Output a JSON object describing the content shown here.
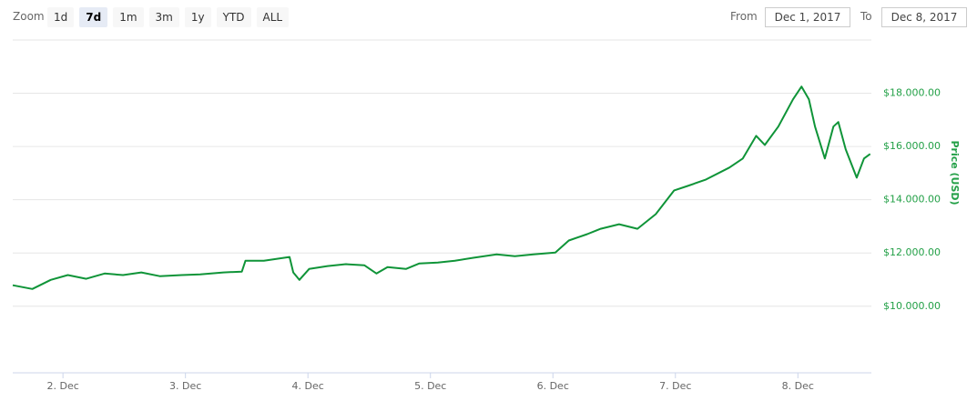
{
  "toolbar": {
    "zoom_label": "Zoom",
    "zoom_buttons": [
      {
        "label": "1d",
        "selected": false
      },
      {
        "label": "7d",
        "selected": true
      },
      {
        "label": "1m",
        "selected": false
      },
      {
        "label": "3m",
        "selected": false
      },
      {
        "label": "1y",
        "selected": false
      },
      {
        "label": "YTD",
        "selected": false
      },
      {
        "label": "ALL",
        "selected": false
      }
    ],
    "from_label": "From",
    "from_value": "Dec 1, 2017",
    "to_label": "To",
    "to_value": "Dec 8, 2017"
  },
  "chart_data": {
    "type": "line",
    "y_axis_title": "Price (USD)",
    "color": "#0f9438",
    "axis_color": "#23a047",
    "grid": true,
    "x": [
      1.59,
      1.75,
      1.9,
      2.04,
      2.19,
      2.34,
      2.49,
      2.64,
      2.79,
      2.97,
      3.12,
      3.31,
      3.46,
      3.49,
      3.64,
      3.85,
      3.88,
      3.93,
      4.01,
      4.16,
      4.31,
      4.46,
      4.56,
      4.65,
      4.8,
      4.91,
      5.06,
      5.2,
      5.35,
      5.54,
      5.69,
      5.84,
      6.02,
      6.13,
      6.28,
      6.39,
      6.54,
      6.69,
      6.84,
      6.99,
      7.1,
      7.25,
      7.44,
      7.55,
      7.66,
      7.73,
      7.84,
      7.96,
      8.03,
      8.09,
      8.14,
      8.22,
      8.29,
      8.33,
      8.39,
      8.48,
      8.54,
      8.59
    ],
    "values": [
      10790,
      10650,
      10990,
      11170,
      11030,
      11230,
      11170,
      11270,
      11130,
      11170,
      11200,
      11270,
      11300,
      11710,
      11710,
      11850,
      11270,
      10990,
      11400,
      11510,
      11580,
      11540,
      11230,
      11470,
      11400,
      11610,
      11640,
      11710,
      11820,
      11950,
      11880,
      11950,
      12020,
      12470,
      12710,
      12910,
      13080,
      12910,
      13460,
      14350,
      14520,
      14760,
      15210,
      15550,
      16400,
      16060,
      16750,
      17770,
      18250,
      17770,
      16750,
      15550,
      16750,
      16920,
      15890,
      14830,
      15550,
      15720
    ],
    "xlim": [
      1.59,
      8.6
    ],
    "xticks": [
      {
        "value": 2,
        "label": "2. Dec"
      },
      {
        "value": 3,
        "label": "3. Dec"
      },
      {
        "value": 4,
        "label": "4. Dec"
      },
      {
        "value": 5,
        "label": "5. Dec"
      },
      {
        "value": 6,
        "label": "6. Dec"
      },
      {
        "value": 7,
        "label": "7. Dec"
      },
      {
        "value": 8,
        "label": "8. Dec"
      }
    ],
    "ylim": [
      7500,
      20000
    ],
    "yticks": [
      {
        "value": 10000,
        "label": "$10.000.00"
      },
      {
        "value": 12000,
        "label": "$12.000.00"
      },
      {
        "value": 14000,
        "label": "$14.000.00"
      },
      {
        "value": 16000,
        "label": "$16.000.00"
      },
      {
        "value": 18000,
        "label": "$18.000.00"
      }
    ]
  }
}
